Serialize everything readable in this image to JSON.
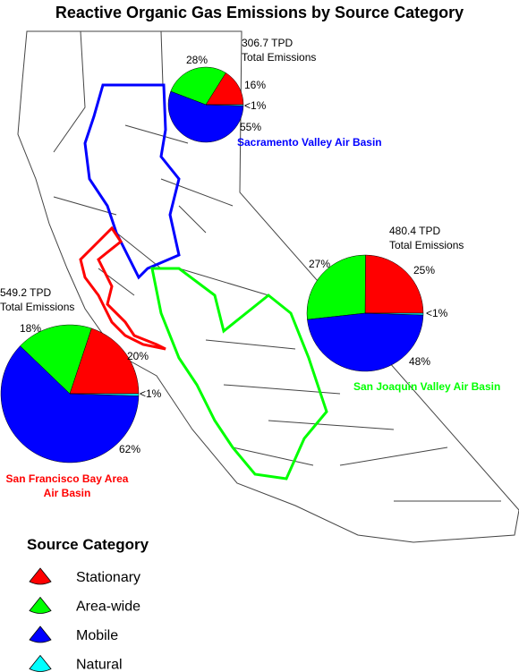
{
  "title": "Reactive Organic Gas Emissions by Source Category",
  "legend": {
    "title": "Source Category",
    "items": [
      {
        "label": "Stationary",
        "color": "#ff0000"
      },
      {
        "label": "Area-wide",
        "color": "#00ff00"
      },
      {
        "label": "Mobile",
        "color": "#0000ff"
      },
      {
        "label": "Natural",
        "color": "#00ffff"
      }
    ]
  },
  "pies": [
    {
      "name": "Sacramento Valley Air Basin",
      "name_color": "#0000ff",
      "total": "306.7 TPD",
      "total_caption": "Total Emissions",
      "values": [
        16,
        28,
        55,
        0.5
      ],
      "value_labels": [
        "16%",
        "28%",
        "55%",
        "<1%"
      ]
    },
    {
      "name": "San Joaquin Valley Air Basin",
      "name_color": "#00ff00",
      "total": "480.4 TPD",
      "total_caption": "Total Emissions",
      "values": [
        25,
        27,
        48,
        0.5
      ],
      "value_labels": [
        "25%",
        "27%",
        "48%",
        "<1%"
      ]
    },
    {
      "name": [
        "San Francisco Bay Area",
        "Air Basin"
      ],
      "name_color": "#ff0000",
      "total": "549.2 TPD",
      "total_caption": "Total Emissions",
      "values": [
        20,
        18,
        62,
        0.5
      ],
      "value_labels": [
        "20%",
        "18%",
        "62%",
        "<1%"
      ]
    }
  ]
}
